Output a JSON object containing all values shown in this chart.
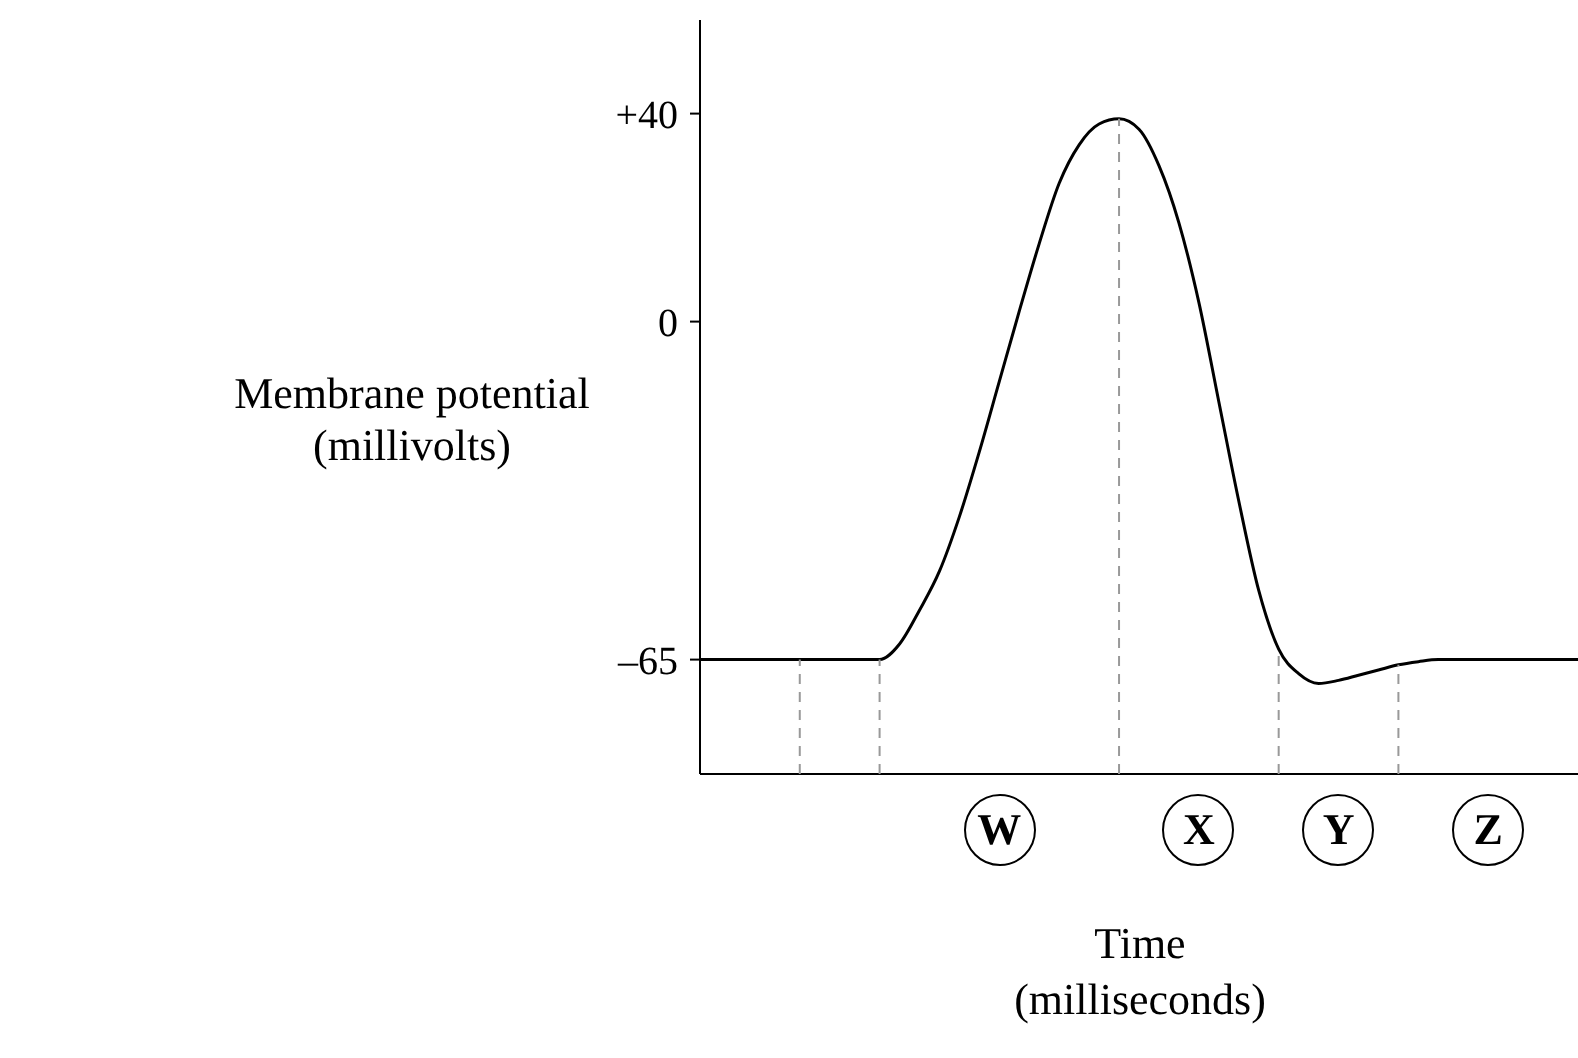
{
  "chart_data": {
    "type": "line",
    "ylabel": "Membrane potential\n(millivolts)",
    "xlabel": "Time\n(milliseconds)",
    "categories": [
      null,
      null,
      null,
      null,
      null,
      null,
      null,
      null,
      null,
      null,
      null,
      null,
      null,
      null,
      null,
      null,
      null,
      null,
      null,
      null,
      null,
      null,
      null,
      null,
      null,
      null,
      null,
      null,
      null,
      null,
      null,
      null,
      null,
      null,
      null,
      null,
      null,
      null,
      null,
      null,
      null,
      null,
      null,
      null,
      null
    ],
    "series": [
      {
        "color": "#000000",
        "values": [
          -65,
          -65,
          -65,
          -65,
          -65,
          -65,
          -65,
          -65,
          -65,
          -65,
          -62,
          -55.5,
          -48,
          -37.5,
          -25,
          -11.5,
          2,
          15,
          26.6,
          34,
          38,
          39,
          37,
          30,
          19,
          3.7,
          -15.4,
          -34.5,
          -51.7,
          -63,
          -67.7,
          -69.6,
          -69,
          -68,
          -67,
          -66,
          -65.4,
          -65,
          -65,
          -65,
          -65,
          -65,
          -65,
          -65,
          -65
        ]
      }
    ],
    "ylim": [
      -87,
      58
    ],
    "yticks": [
      {
        "value": 40,
        "label": "+40"
      },
      0,
      {
        "value": -65,
        "label": "–65"
      }
    ],
    "tick_labels": "y",
    "grid": false,
    "marker": "none",
    "line_style": "solid",
    "annotations": [
      "W",
      "X",
      "Y",
      "Z"
    ]
  }
}
